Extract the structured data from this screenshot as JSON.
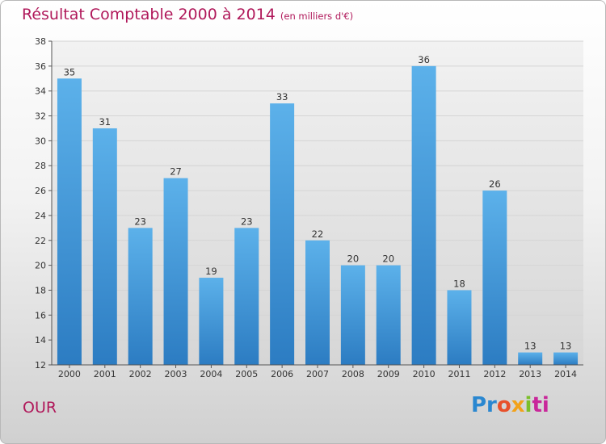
{
  "title": "Résultat Comptable 2000 à 2014",
  "subtitle": "(en milliers d'€)",
  "town": "OUR",
  "logo": {
    "p1": "Pr",
    "p2": "o",
    "p3": "x",
    "p4": "i",
    "p5": "ti"
  },
  "colors": {
    "bar_top": "#5aaee8",
    "bar_bottom": "#2f7fc4",
    "title": "#b0185a",
    "grid": "#d8d8d8"
  },
  "chart_data": {
    "type": "bar",
    "title": "Résultat Comptable 2000 à 2014",
    "subtitle": "(en milliers d'€)",
    "xlabel": "",
    "ylabel": "",
    "categories": [
      "2000",
      "2001",
      "2002",
      "2003",
      "2004",
      "2005",
      "2006",
      "2007",
      "2008",
      "2009",
      "2010",
      "2011",
      "2012",
      "2013",
      "2014"
    ],
    "values": [
      35,
      31,
      23,
      27,
      19,
      23,
      33,
      22,
      20,
      20,
      36,
      18,
      26,
      13,
      13
    ],
    "ylim": [
      12,
      38
    ],
    "yticks": [
      12,
      14,
      16,
      18,
      20,
      22,
      24,
      26,
      28,
      30,
      32,
      34,
      36,
      38
    ],
    "grid": true,
    "data_labels": true
  }
}
